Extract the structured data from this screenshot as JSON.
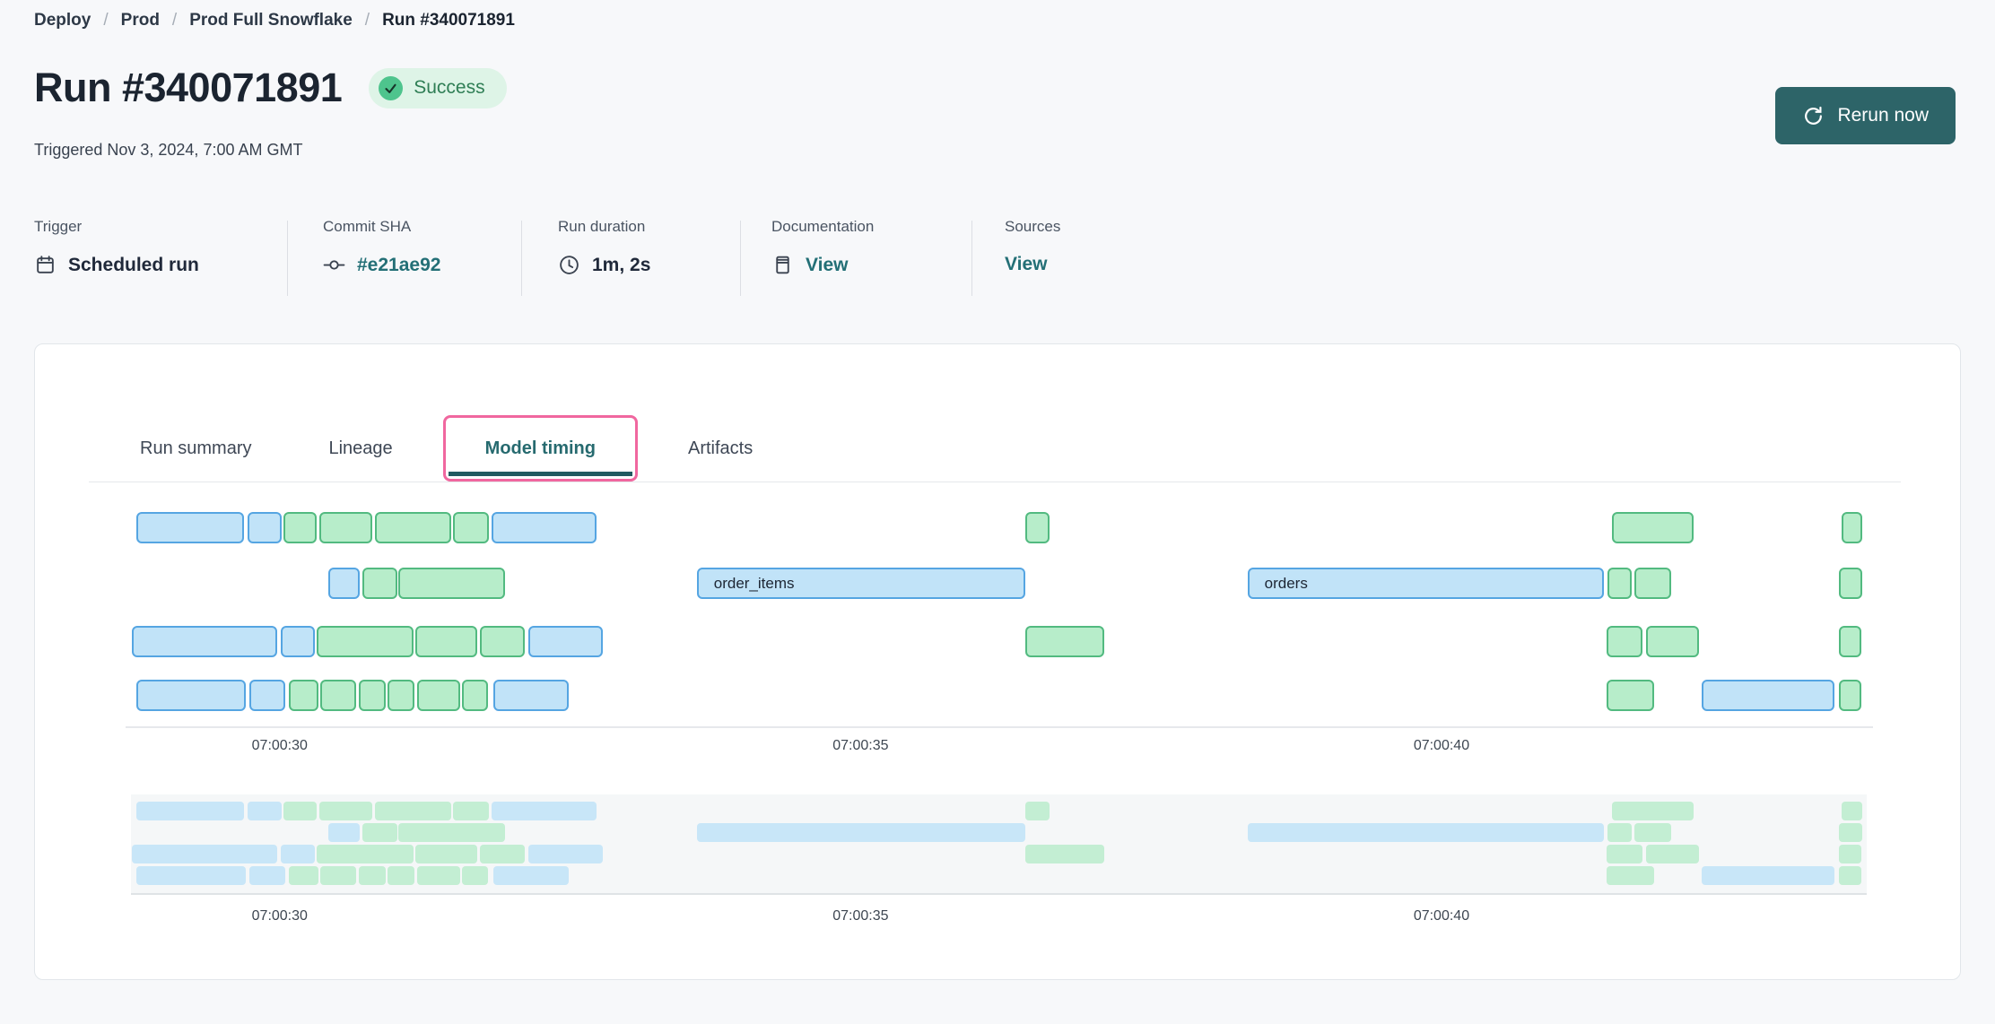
{
  "breadcrumb": {
    "separator": "/",
    "items": [
      {
        "label": "Deploy"
      },
      {
        "label": "Prod"
      },
      {
        "label": "Prod Full Snowflake"
      },
      {
        "label": "Run #340071891"
      }
    ]
  },
  "header": {
    "title": "Run #340071891",
    "status": "Success",
    "triggered": "Triggered Nov 3, 2024, 7:00 AM GMT",
    "rerun_label": "Rerun now"
  },
  "meta": {
    "items": [
      {
        "label": "Trigger",
        "value": "Scheduled run",
        "icon": "calendar-icon",
        "link": false
      },
      {
        "label": "Commit SHA",
        "value": "#e21ae92",
        "icon": "commit-icon",
        "link": true
      },
      {
        "label": "Run duration",
        "value": "1m, 2s",
        "icon": "clock-icon",
        "link": false
      },
      {
        "label": "Documentation",
        "value": "View",
        "icon": "document-icon",
        "link": true
      },
      {
        "label": "Sources",
        "value": "View",
        "icon": null,
        "link": true
      }
    ]
  },
  "tabs": {
    "items": [
      {
        "label": "Run summary",
        "active": false
      },
      {
        "label": "Lineage",
        "active": false
      },
      {
        "label": "Model timing",
        "active": true
      },
      {
        "label": "Artifacts",
        "active": false
      }
    ]
  },
  "colors": {
    "accent_teal": "#266a6f",
    "button_teal": "#2d6468",
    "link_teal": "#236f76",
    "active_tab_ring_pink": "#f0679f",
    "success_bg": "#def4e7",
    "success_fg": "#2f7e55",
    "success_circle": "#4ec48d",
    "bar_blue_fill": "#c1e3f8",
    "bar_blue_border": "#55a5e2",
    "bar_green_fill": "#b7edca",
    "bar_green_border": "#52ba80"
  },
  "chart_data": {
    "type": "gantt",
    "title": "Model timing",
    "x_axis": "time of day (GMT), seconds after 07:00:00",
    "domain": [
      28.72,
      43.66
    ],
    "ticks": [
      {
        "t": 30,
        "label": "07:00:30"
      },
      {
        "t": 35,
        "label": "07:00:35"
      },
      {
        "t": 40,
        "label": "07:00:40"
      }
    ],
    "legend": {
      "blue": "model run segment (blue)",
      "green": "model run segment (green)"
    },
    "rows": [
      [
        {
          "start": 28.77,
          "end": 29.69,
          "color": "blue"
        },
        {
          "start": 29.72,
          "end": 30.02,
          "color": "blue"
        },
        {
          "start": 30.03,
          "end": 30.32,
          "color": "green"
        },
        {
          "start": 30.34,
          "end": 30.8,
          "color": "green"
        },
        {
          "start": 30.82,
          "end": 31.48,
          "color": "green"
        },
        {
          "start": 31.49,
          "end": 31.8,
          "color": "green"
        },
        {
          "start": 31.82,
          "end": 32.73,
          "color": "blue"
        },
        {
          "start": 36.42,
          "end": 36.63,
          "color": "green"
        },
        {
          "start": 41.47,
          "end": 42.17,
          "color": "green"
        },
        {
          "start": 43.44,
          "end": 43.62,
          "color": "green"
        }
      ],
      [
        {
          "start": 30.42,
          "end": 30.69,
          "color": "blue"
        },
        {
          "start": 30.71,
          "end": 31.01,
          "color": "green"
        },
        {
          "start": 31.02,
          "end": 31.94,
          "color": "green"
        },
        {
          "start": 33.59,
          "end": 36.42,
          "color": "blue",
          "label": "order_items"
        },
        {
          "start": 38.33,
          "end": 41.4,
          "color": "blue",
          "label": "orders"
        },
        {
          "start": 41.43,
          "end": 41.64,
          "color": "green"
        },
        {
          "start": 41.66,
          "end": 41.98,
          "color": "green"
        },
        {
          "start": 43.42,
          "end": 43.62,
          "color": "green"
        }
      ],
      [
        {
          "start": 28.73,
          "end": 29.98,
          "color": "blue"
        },
        {
          "start": 30.01,
          "end": 30.3,
          "color": "blue"
        },
        {
          "start": 30.32,
          "end": 31.15,
          "color": "green"
        },
        {
          "start": 31.17,
          "end": 31.7,
          "color": "green"
        },
        {
          "start": 31.72,
          "end": 32.11,
          "color": "green"
        },
        {
          "start": 32.14,
          "end": 32.78,
          "color": "blue"
        },
        {
          "start": 36.42,
          "end": 37.1,
          "color": "green"
        },
        {
          "start": 41.42,
          "end": 41.73,
          "color": "green"
        },
        {
          "start": 41.76,
          "end": 42.22,
          "color": "green"
        },
        {
          "start": 43.42,
          "end": 43.61,
          "color": "green"
        }
      ],
      [
        {
          "start": 28.77,
          "end": 29.71,
          "color": "blue"
        },
        {
          "start": 29.74,
          "end": 30.05,
          "color": "blue"
        },
        {
          "start": 30.08,
          "end": 30.33,
          "color": "green"
        },
        {
          "start": 30.35,
          "end": 30.66,
          "color": "green"
        },
        {
          "start": 30.68,
          "end": 30.91,
          "color": "green"
        },
        {
          "start": 30.93,
          "end": 31.16,
          "color": "green"
        },
        {
          "start": 31.18,
          "end": 31.55,
          "color": "green"
        },
        {
          "start": 31.57,
          "end": 31.79,
          "color": "green"
        },
        {
          "start": 31.84,
          "end": 32.49,
          "color": "blue"
        },
        {
          "start": 41.42,
          "end": 41.83,
          "color": "green"
        },
        {
          "start": 42.24,
          "end": 43.38,
          "color": "blue"
        },
        {
          "start": 43.42,
          "end": 43.61,
          "color": "green"
        }
      ]
    ]
  }
}
